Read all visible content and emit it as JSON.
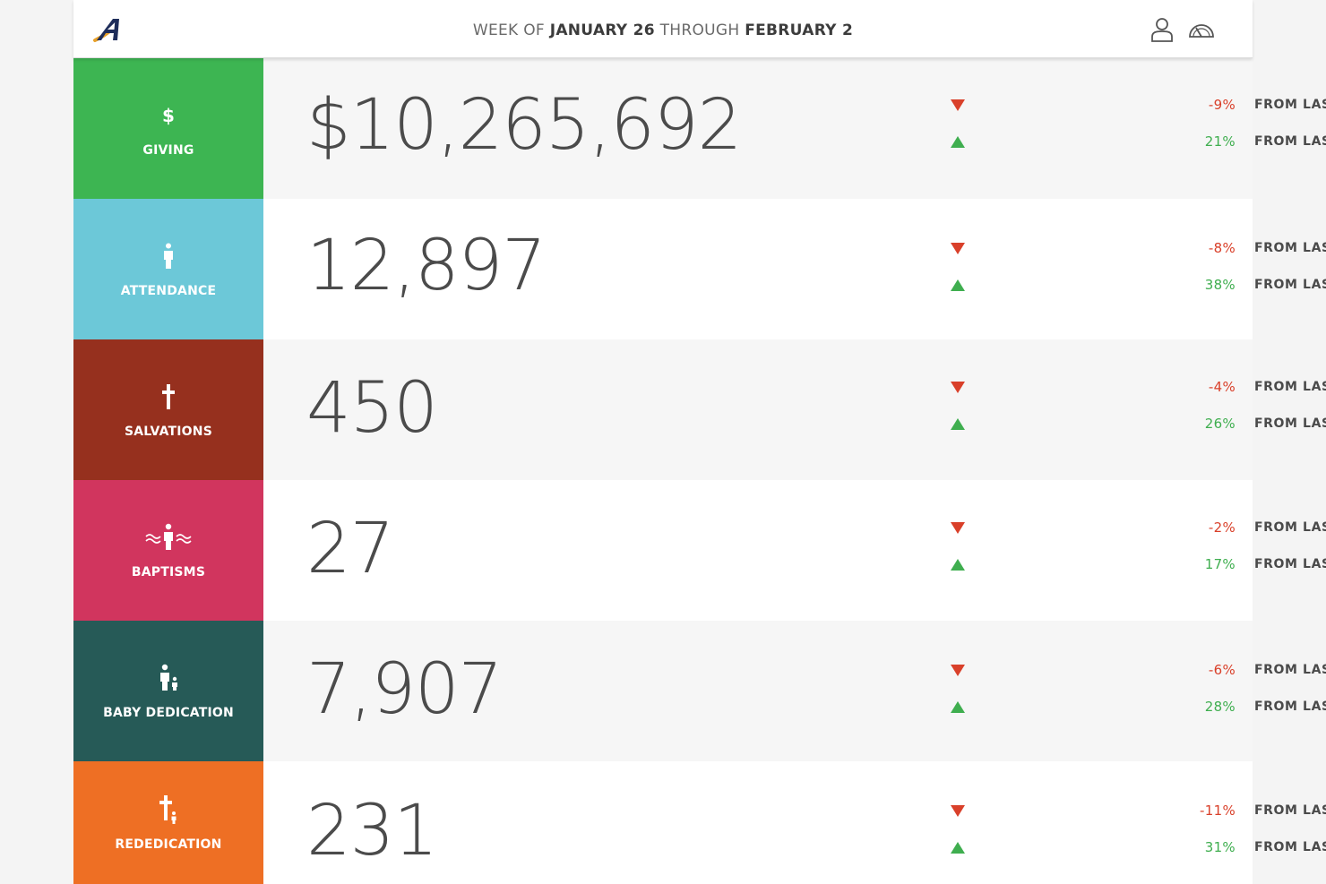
{
  "header": {
    "logo_icon": "app-logo-a",
    "title_prefix": "WEEK OF",
    "title_start": "JANUARY 26",
    "title_mid": "THROUGH",
    "title_end": "FEBRUARY 2",
    "user_icon": "user-icon",
    "dashboard_icon": "speedometer-icon"
  },
  "colors": {
    "giving": "#3db552",
    "attendance": "#6cc8d8",
    "salvations": "#96301e",
    "baptisms": "#d1355e",
    "baby_dedication": "#265a57",
    "rededication": "#ee6f24",
    "negative": "#d9402a",
    "positive": "#3fae4f"
  },
  "metrics": [
    {
      "key": "giving",
      "icon": "dollar-icon",
      "icon_glyph": "$",
      "label": "GIVING",
      "value": "$10,265,692",
      "week_change": "-9%",
      "week_label": "FROM LAST WEEK",
      "year_change": "21%",
      "year_label": "FROM LAST YEAR"
    },
    {
      "key": "attendance",
      "icon": "person-icon",
      "label": "ATTENDANCE",
      "value": "12,897",
      "week_change": "-8%",
      "week_label": "FROM LAST WEEK",
      "year_change": "38%",
      "year_label": "FROM LAST YEAR"
    },
    {
      "key": "salvations",
      "icon": "cross-icon",
      "label": "SALVATIONS",
      "value": "450",
      "week_change": "-4%",
      "week_label": "FROM LAST WEEK",
      "year_change": "26%",
      "year_label": "FROM LAST YEAR"
    },
    {
      "key": "baptisms",
      "icon": "baptism-icon",
      "label": "BAPTISMS",
      "value": "27",
      "week_change": "-2%",
      "week_label": "FROM LAST WEEK",
      "year_change": "17%",
      "year_label": "FROM LAST YEAR"
    },
    {
      "key": "baby_dedication",
      "icon": "parent-child-icon",
      "label": "BABY DEDICATION",
      "value": "7,907",
      "week_change": "-6%",
      "week_label": "FROM LAST WEEK",
      "year_change": "28%",
      "year_label": "FROM LAST YEAR"
    },
    {
      "key": "rededication",
      "icon": "cross-person-icon",
      "label": "REDEDICATION",
      "value": "231",
      "week_change": "-11%",
      "week_label": "FROM LAST WEEK",
      "year_change": "31%",
      "year_label": "FROM LAST YEAR"
    }
  ]
}
